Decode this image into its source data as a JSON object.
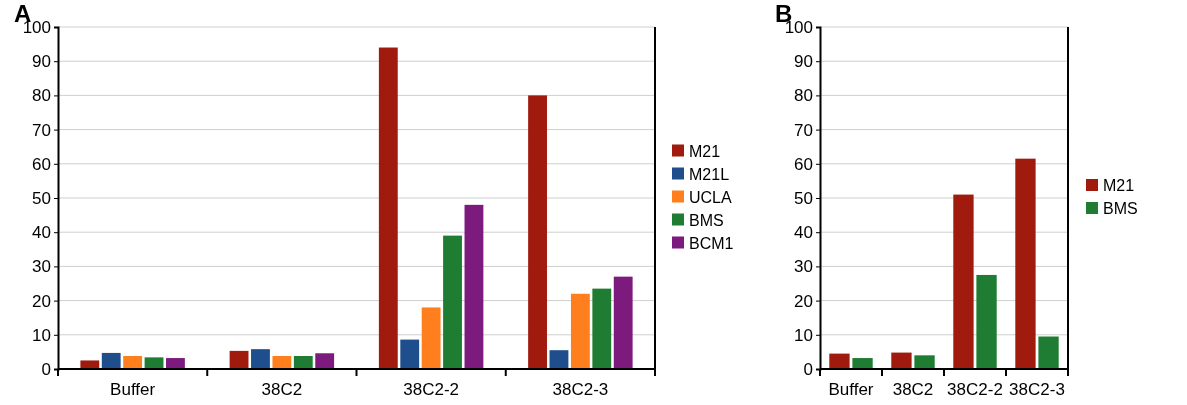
{
  "chart_data": [
    {
      "type": "bar",
      "title": "A",
      "categories": [
        "Buffer",
        "38C2",
        "38C2-2",
        "38C2-3"
      ],
      "series": [
        {
          "name": "M21",
          "color": "#a01a0e",
          "values": [
            2.5,
            5.3,
            94,
            80
          ]
        },
        {
          "name": "M21L",
          "color": "#1f4e8c",
          "values": [
            4.7,
            5.8,
            8.6,
            5.5
          ]
        },
        {
          "name": "UCLA",
          "color": "#ff7f1e",
          "values": [
            3.8,
            3.8,
            18,
            22
          ]
        },
        {
          "name": "BMS",
          "color": "#1e7d32",
          "values": [
            3.4,
            3.8,
            39,
            23.5
          ]
        },
        {
          "name": "BCM1",
          "color": "#7d1a7d",
          "values": [
            3.2,
            4.6,
            48,
            27
          ]
        }
      ],
      "ylim": [
        0,
        100
      ],
      "yticks": [
        0,
        10,
        20,
        30,
        40,
        50,
        60,
        70,
        80,
        90,
        100
      ],
      "grid": "y",
      "legend": "right"
    },
    {
      "type": "bar",
      "title": "B",
      "categories": [
        "Buffer",
        "38C2",
        "38C2-2",
        "38C2-3"
      ],
      "series": [
        {
          "name": "M21",
          "color": "#a01a0e",
          "values": [
            4.5,
            4.8,
            51,
            61.5
          ]
        },
        {
          "name": "BMS",
          "color": "#1e7d32",
          "values": [
            3.2,
            4.0,
            27.5,
            9.5
          ]
        }
      ],
      "ylim": [
        0,
        100
      ],
      "yticks": [
        0,
        10,
        20,
        30,
        40,
        50,
        60,
        70,
        80,
        90,
        100
      ],
      "grid": "y",
      "legend": "right"
    }
  ]
}
